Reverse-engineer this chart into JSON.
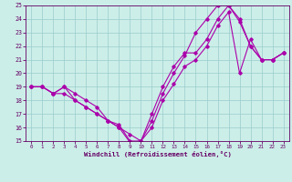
{
  "xlabel": "Windchill (Refroidissement éolien,°C)",
  "bg_color": "#cceee8",
  "line_color": "#aa00aa",
  "grid_color": "#99cccc",
  "xlim": [
    -0.5,
    23.5
  ],
  "ylim": [
    15,
    25
  ],
  "xticks": [
    0,
    1,
    2,
    3,
    4,
    5,
    6,
    7,
    8,
    9,
    10,
    11,
    12,
    13,
    14,
    15,
    16,
    17,
    18,
    19,
    20,
    21,
    22,
    23
  ],
  "yticks": [
    15,
    16,
    17,
    18,
    19,
    20,
    21,
    22,
    23,
    24,
    25
  ],
  "line1_x": [
    0,
    1,
    2,
    3,
    4,
    5,
    6,
    7,
    8,
    9,
    10,
    11,
    12,
    13,
    14,
    15,
    16,
    17,
    18,
    19,
    20,
    21,
    22,
    23
  ],
  "line1_y": [
    19,
    19,
    18.5,
    19,
    18.5,
    18,
    17.5,
    16.5,
    16.2,
    15,
    15,
    16.5,
    18.5,
    20,
    21.3,
    23,
    24,
    25,
    25,
    24,
    22,
    21,
    21,
    21.5
  ],
  "line2_x": [
    0,
    1,
    2,
    3,
    4,
    5,
    6,
    7,
    8,
    9,
    10,
    11,
    12,
    13,
    14,
    15,
    16,
    17,
    18,
    19,
    20,
    21,
    22,
    23
  ],
  "line2_y": [
    19,
    19,
    18.5,
    19,
    18,
    17.5,
    17,
    16.5,
    16,
    14.9,
    15,
    17,
    19,
    20.5,
    21.5,
    21.5,
    22.5,
    24,
    25,
    23.8,
    22,
    21,
    21,
    21.5
  ],
  "line3_x": [
    0,
    1,
    2,
    3,
    4,
    5,
    6,
    7,
    8,
    9,
    10,
    11,
    12,
    13,
    14,
    15,
    16,
    17,
    18,
    19,
    20,
    21,
    22,
    23
  ],
  "line3_y": [
    19,
    19,
    18.5,
    18.5,
    18,
    17.5,
    17,
    16.5,
    16,
    15.5,
    15,
    16,
    18,
    19.2,
    20.5,
    21,
    22,
    23.5,
    24.5,
    20,
    22.5,
    21,
    21,
    21.5
  ]
}
